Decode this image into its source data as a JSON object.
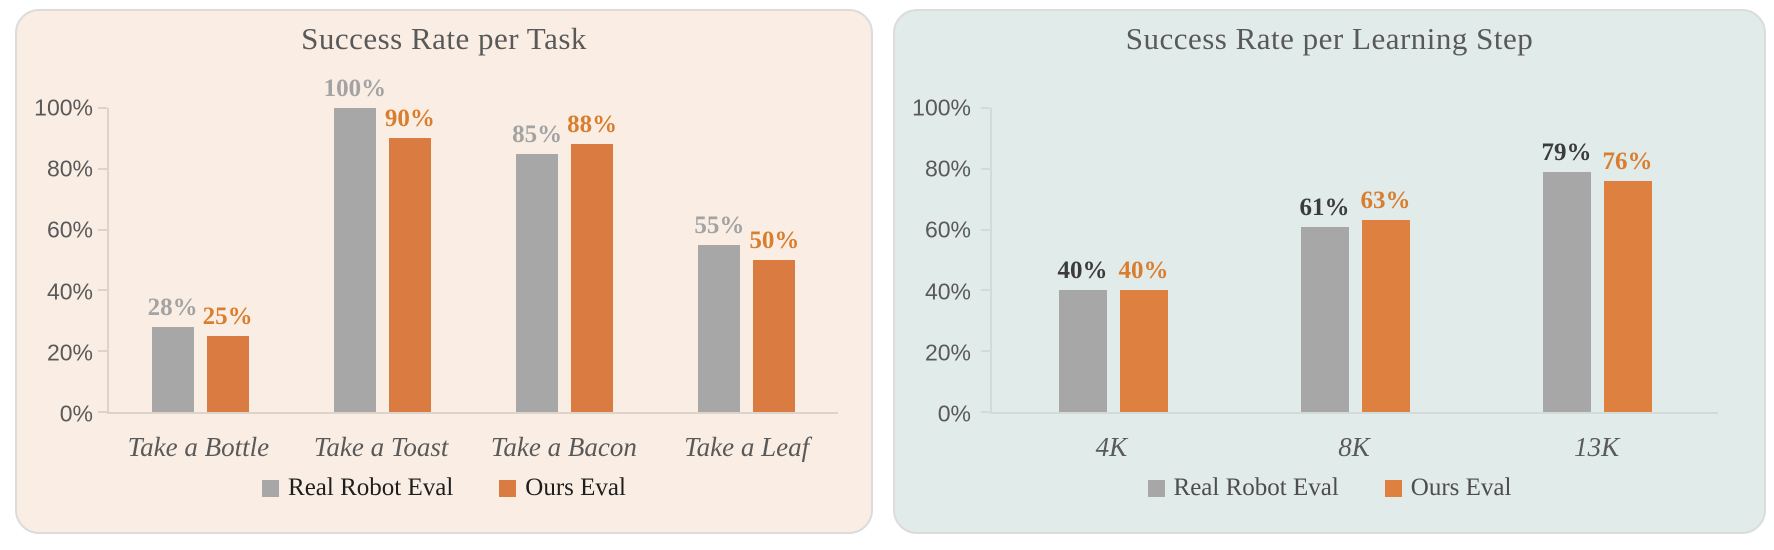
{
  "chart_data": [
    {
      "type": "bar",
      "title": "Success Rate per Task",
      "categories": [
        "Take a Bottle",
        "Take a Toast",
        "Take a Bacon",
        "Take a Leaf"
      ],
      "series": [
        {
          "name": "Real Robot Eval",
          "values": [
            28,
            100,
            85,
            55
          ],
          "value_labels": [
            "28%",
            "100%",
            "85%",
            "55%"
          ],
          "color": "#A7A7A7",
          "label_color": "#A3A3A3"
        },
        {
          "name": "Ours Eval",
          "values": [
            25,
            90,
            88,
            50
          ],
          "value_labels": [
            "25%",
            "90%",
            "88%",
            "50%"
          ],
          "color": "#DA7B42",
          "label_color": "#D97E2F"
        }
      ],
      "xlabel": "",
      "ylabel": "",
      "ylim": [
        0,
        100
      ],
      "yticks": [
        {
          "value": 0,
          "label": "0%"
        },
        {
          "value": 20,
          "label": "20%"
        },
        {
          "value": 40,
          "label": "40%"
        },
        {
          "value": 60,
          "label": "60%"
        },
        {
          "value": 80,
          "label": "80%"
        },
        {
          "value": 100,
          "label": "100%"
        }
      ],
      "grid": false,
      "legend_position": "bottom",
      "panel_bg": "#FAEEE4",
      "axis_color": "#DCD4CB",
      "text_color": "#595959",
      "legend_text_color": "#1E1E1E"
    },
    {
      "type": "bar",
      "title": "Success Rate per Learning Step",
      "categories": [
        "4K",
        "8K",
        "13K"
      ],
      "series": [
        {
          "name": "Real Robot Eval",
          "values": [
            40,
            61,
            79
          ],
          "value_labels": [
            "40%",
            "61%",
            "79%"
          ],
          "color": "#A7A7A7",
          "label_color": "#3B3B3B"
        },
        {
          "name": "Ours Eval",
          "values": [
            40,
            63,
            76
          ],
          "value_labels": [
            "40%",
            "63%",
            "76%"
          ],
          "color": "#DD8040",
          "label_color": "#D97E2F"
        }
      ],
      "xlabel": "",
      "ylabel": "",
      "ylim": [
        0,
        100
      ],
      "yticks": [
        {
          "value": 0,
          "label": "0%"
        },
        {
          "value": 20,
          "label": "20%"
        },
        {
          "value": 40,
          "label": "40%"
        },
        {
          "value": 60,
          "label": "60%"
        },
        {
          "value": 80,
          "label": "80%"
        },
        {
          "value": 100,
          "label": "100%"
        }
      ],
      "grid": false,
      "legend_position": "bottom",
      "panel_bg": "#E1EBEA",
      "axis_color": "#D3DBD8",
      "text_color": "#595959",
      "legend_text_color": "#4D4D4D"
    }
  ]
}
